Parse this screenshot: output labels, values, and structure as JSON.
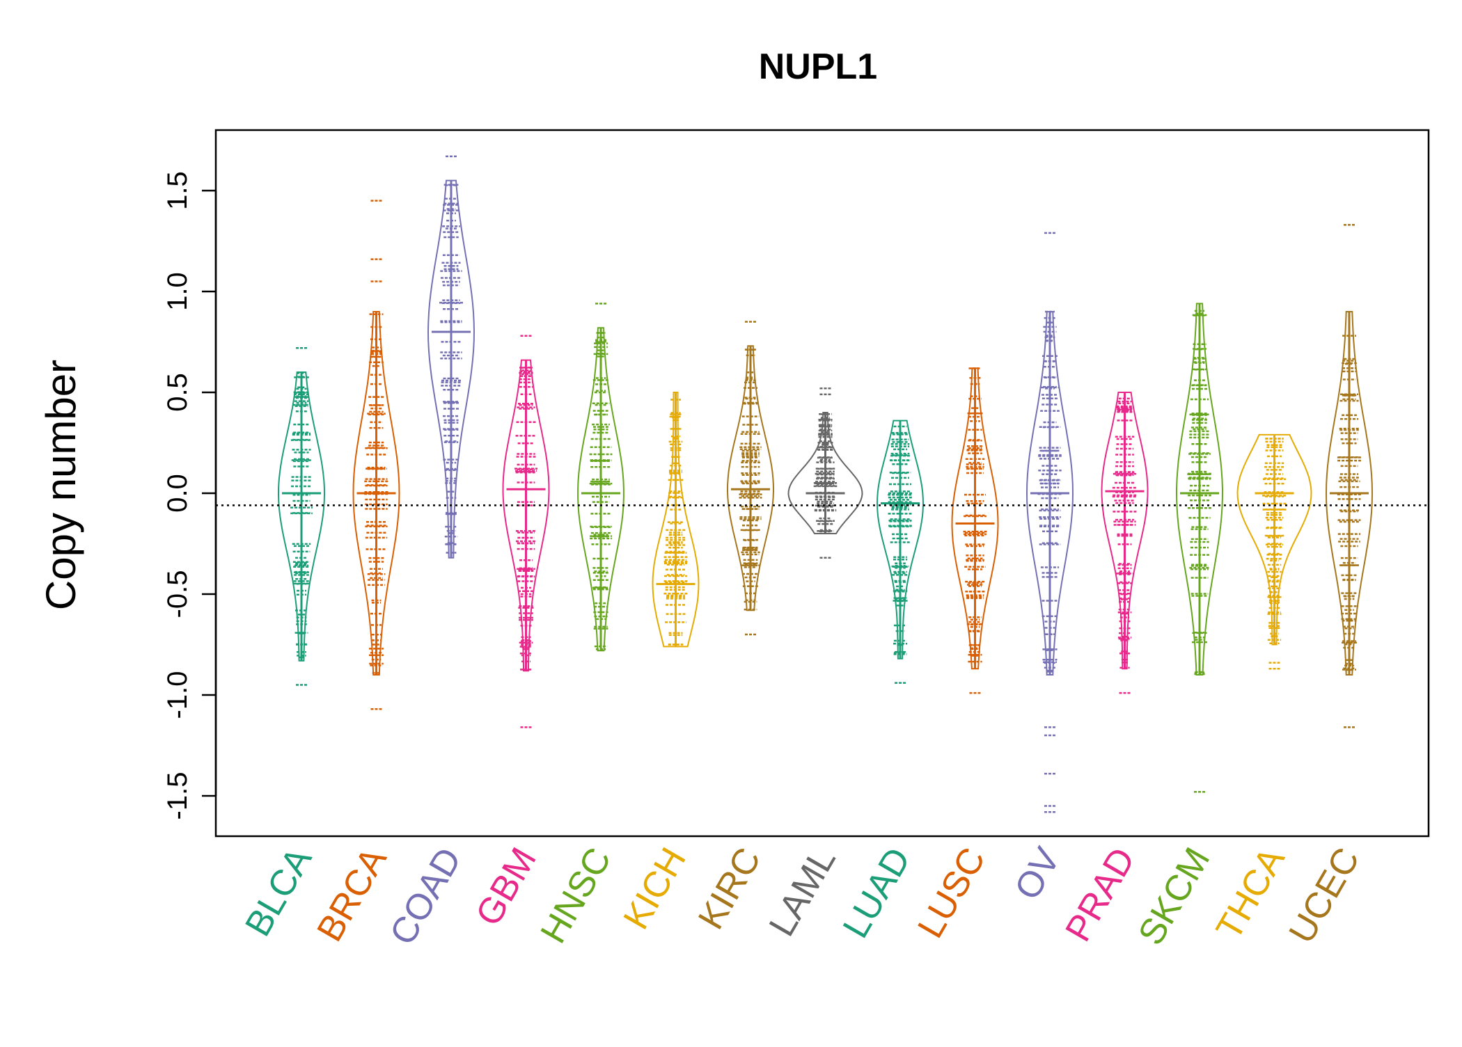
{
  "chart_data": {
    "type": "beanplot",
    "title": "NUPL1",
    "xlabel": "",
    "ylabel": "Copy number",
    "ylim": [
      -1.7,
      1.8
    ],
    "yticks": [
      -1.5,
      -1.0,
      -0.5,
      0.0,
      0.5,
      1.0,
      1.5
    ],
    "ytick_labels": [
      "-1.5",
      "-1.0",
      "-0.5",
      "0.0",
      "0.5",
      "1.0",
      "1.5"
    ],
    "reference_line": -0.06,
    "categories": [
      "BLCA",
      "BRCA",
      "COAD",
      "GBM",
      "HNSC",
      "KICH",
      "KIRC",
      "LAML",
      "LUAD",
      "LUSC",
      "OV",
      "PRAD",
      "SKCM",
      "THCA",
      "UCEC"
    ],
    "colors": [
      "#1b9e77",
      "#d95f02",
      "#7570b3",
      "#e7298a",
      "#66a61e",
      "#e6ab02",
      "#a6761d",
      "#666666",
      "#1b9e77",
      "#d95f02",
      "#7570b3",
      "#e7298a",
      "#66a61e",
      "#e6ab02",
      "#a6761d"
    ],
    "series": [
      {
        "name": "BLCA",
        "min": -0.95,
        "max": 0.72,
        "mean": 0.0,
        "outliers": [
          -0.95,
          -0.75,
          0.72
        ]
      },
      {
        "name": "BRCA",
        "min": -1.07,
        "max": 1.45,
        "mean": 0.0,
        "outliers": [
          -1.07,
          1.45,
          1.16,
          1.05
        ]
      },
      {
        "name": "COAD",
        "min": -0.32,
        "max": 1.67,
        "mean": 0.8,
        "outliers": [
          1.67
        ]
      },
      {
        "name": "GBM",
        "min": -1.16,
        "max": 0.78,
        "mean": 0.02,
        "outliers": [
          -1.16,
          0.78
        ]
      },
      {
        "name": "HNSC",
        "min": -0.78,
        "max": 0.94,
        "mean": 0.0,
        "outliers": [
          0.94,
          0.54
        ]
      },
      {
        "name": "KICH",
        "min": -0.76,
        "max": 0.5,
        "mean": -0.45,
        "outliers": []
      },
      {
        "name": "KIRC",
        "min": -0.7,
        "max": 0.85,
        "mean": 0.02,
        "outliers": [
          0.85,
          -0.7
        ]
      },
      {
        "name": "LAML",
        "min": -0.32,
        "max": 0.52,
        "mean": 0.0,
        "outliers": [
          0.52,
          0.49,
          -0.32
        ]
      },
      {
        "name": "LUAD",
        "min": -0.94,
        "max": 0.36,
        "mean": -0.05,
        "outliers": [
          -0.94
        ]
      },
      {
        "name": "LUSC",
        "min": -0.99,
        "max": 0.62,
        "mean": -0.15,
        "outliers": [
          -0.99
        ]
      },
      {
        "name": "OV",
        "min": -1.58,
        "max": 1.29,
        "mean": 0.0,
        "outliers": [
          -1.58,
          -1.55,
          -1.39,
          -1.2,
          -1.16,
          1.29
        ]
      },
      {
        "name": "PRAD",
        "min": -0.99,
        "max": 0.5,
        "mean": 0.01,
        "outliers": [
          -0.99
        ]
      },
      {
        "name": "SKCM",
        "min": -1.48,
        "max": 0.94,
        "mean": 0.0,
        "outliers": [
          -1.48
        ]
      },
      {
        "name": "THCA",
        "min": -0.87,
        "max": 0.29,
        "mean": 0.0,
        "outliers": [
          -0.84,
          -0.87
        ]
      },
      {
        "name": "UCEC",
        "min": -1.16,
        "max": 1.33,
        "mean": 0.0,
        "outliers": [
          -1.16,
          1.33
        ]
      }
    ]
  }
}
